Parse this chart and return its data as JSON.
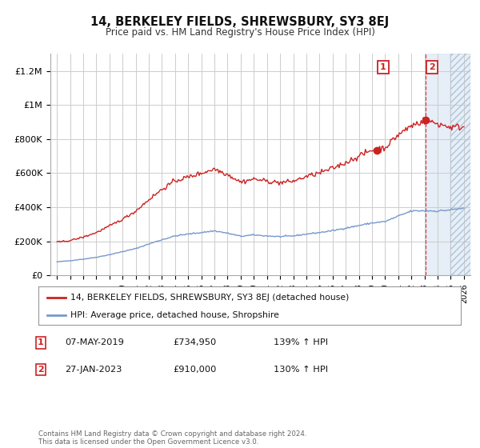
{
  "title": "14, BERKELEY FIELDS, SHREWSBURY, SY3 8EJ",
  "subtitle": "Price paid vs. HM Land Registry's House Price Index (HPI)",
  "footer": "Contains HM Land Registry data © Crown copyright and database right 2024.\nThis data is licensed under the Open Government Licence v3.0.",
  "legend_line1": "14, BERKELEY FIELDS, SHREWSBURY, SY3 8EJ (detached house)",
  "legend_line2": "HPI: Average price, detached house, Shropshire",
  "sale1_label": "1",
  "sale1_date": "07-MAY-2019",
  "sale1_price": "£734,950",
  "sale1_hpi": "139% ↑ HPI",
  "sale2_label": "2",
  "sale2_date": "27-JAN-2023",
  "sale2_price": "£910,000",
  "sale2_hpi": "130% ↑ HPI",
  "price_line_color": "#cc2222",
  "hpi_line_color": "#7799cc",
  "sale1_x": 2019.35,
  "sale2_x": 2023.07,
  "sale1_y": 734950,
  "sale2_y": 910000,
  "ylim": [
    0,
    1300000
  ],
  "xlim": [
    1994.5,
    2026.5
  ],
  "background_color": "#ffffff",
  "plot_bg_color": "#ffffff"
}
